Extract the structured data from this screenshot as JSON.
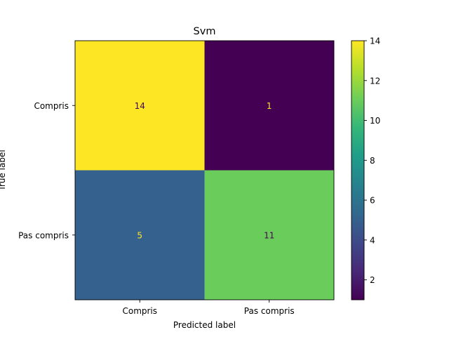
{
  "chart_data": {
    "type": "heatmap",
    "title": "Svm",
    "xlabel": "Predicted label",
    "ylabel": "True label",
    "x_categories": [
      "Compris",
      "Pas compris"
    ],
    "y_categories": [
      "Compris",
      "Pas compris"
    ],
    "matrix": [
      [
        14,
        1
      ],
      [
        5,
        11
      ]
    ],
    "colorbar": {
      "range": [
        1,
        14
      ],
      "ticks": [
        2,
        4,
        6,
        8,
        10,
        12,
        14
      ],
      "colormap": "viridis"
    },
    "colors": {
      "viridis": [
        "#440154",
        "#482878",
        "#3e4989",
        "#31688e",
        "#26828e",
        "#1f9e89",
        "#35b779",
        "#6ece58",
        "#b5de2b",
        "#fde725"
      ],
      "text_on_dark": "#fde725",
      "text_on_light": "#440154"
    }
  }
}
